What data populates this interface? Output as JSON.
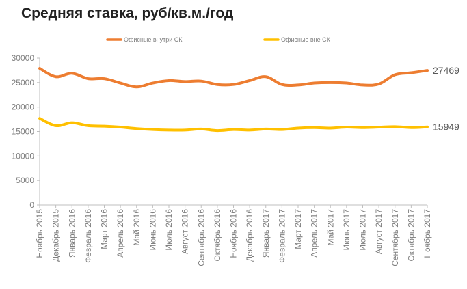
{
  "chart_data": {
    "type": "line",
    "title": "Средняя ставка, руб/кв.м./год",
    "xlabel": "",
    "ylabel": "",
    "ylim": [
      0,
      30000
    ],
    "yticks": [
      "0",
      "5000",
      "10000",
      "15000",
      "20000",
      "25000",
      "30000"
    ],
    "grid": false,
    "legend_position": "top",
    "categories": [
      "Ноябрь 2015",
      "Декабрь 2015",
      "Январь 2016",
      "Февраль 2016",
      "Март 2016",
      "Апрель 2016",
      "Май 2016",
      "Июнь 2016",
      "Июль 2016",
      "Август 2016",
      "Сентябрь 2016",
      "Октябрь 2016",
      "Ноябрь 2016",
      "Декабрь 2016",
      "Январь 2017",
      "Февраль 2017",
      "Март 2017",
      "Апрель 2017",
      "Май 2017",
      "Июнь 2017",
      "Июль 2017",
      "Август 2017",
      "Сентябрь 2017",
      "Октябрь 2017",
      "Ноябрь 2017"
    ],
    "series": [
      {
        "name": "Офисные внутри СК",
        "color": "#ed7d31",
        "values": [
          27900,
          26200,
          26900,
          25800,
          25800,
          24900,
          24100,
          24900,
          25400,
          25200,
          25300,
          24600,
          24600,
          25400,
          26200,
          24600,
          24500,
          24900,
          25000,
          24900,
          24500,
          24700,
          26600,
          27000,
          27469
        ],
        "end_label": "27469"
      },
      {
        "name": "Офисные вне СК",
        "color": "#ffc000",
        "values": [
          17700,
          16200,
          16800,
          16200,
          16100,
          15900,
          15600,
          15400,
          15300,
          15300,
          15500,
          15200,
          15400,
          15300,
          15500,
          15400,
          15700,
          15800,
          15700,
          15900,
          15800,
          15900,
          16000,
          15800,
          15949
        ],
        "end_label": "15949"
      }
    ]
  }
}
